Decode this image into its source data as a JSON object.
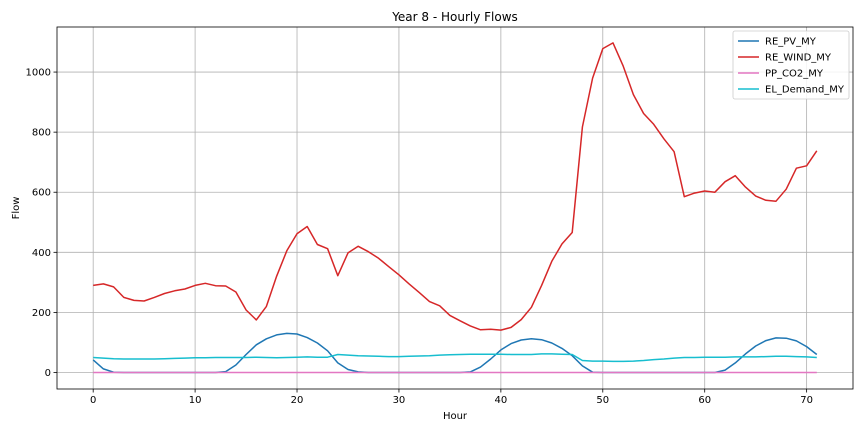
{
  "chart_data": {
    "type": "line",
    "title": "Year 8 - Hourly Flows",
    "xlabel": "Hour",
    "ylabel": "Flow",
    "xlim": [
      -3.55,
      74.55
    ],
    "ylim": [
      -55,
      1150
    ],
    "xticks": [
      0,
      10,
      20,
      30,
      40,
      50,
      60,
      70
    ],
    "yticks": [
      0,
      200,
      400,
      600,
      800,
      1000
    ],
    "grid": true,
    "legend_position": "top-right",
    "x": [
      0,
      1,
      2,
      3,
      4,
      5,
      6,
      7,
      8,
      9,
      10,
      11,
      12,
      13,
      14,
      15,
      16,
      17,
      18,
      19,
      20,
      21,
      22,
      23,
      24,
      25,
      26,
      27,
      28,
      29,
      30,
      31,
      32,
      33,
      34,
      35,
      36,
      37,
      38,
      39,
      40,
      41,
      42,
      43,
      44,
      45,
      46,
      47,
      48,
      49,
      50,
      51,
      52,
      53,
      54,
      55,
      56,
      57,
      58,
      59,
      60,
      61,
      62,
      63,
      64,
      65,
      66,
      67,
      68,
      69,
      70,
      71
    ],
    "series": [
      {
        "name": "RE_PV_MY",
        "color": "#1f77b4",
        "values": [
          42,
          12,
          1,
          0,
          0,
          0,
          0,
          0,
          0,
          0,
          0,
          0,
          0,
          3,
          25,
          60,
          92,
          112,
          125,
          130,
          128,
          116,
          98,
          72,
          32,
          10,
          2,
          0,
          0,
          0,
          0,
          0,
          0,
          0,
          0,
          0,
          0,
          2,
          18,
          45,
          75,
          96,
          108,
          112,
          109,
          98,
          80,
          56,
          22,
          1,
          0,
          0,
          0,
          0,
          0,
          0,
          0,
          0,
          0,
          0,
          0,
          0,
          8,
          32,
          62,
          88,
          106,
          115,
          114,
          105,
          86,
          60
        ]
      },
      {
        "name": "RE_WIND_MY",
        "color": "#d62728",
        "values": [
          290,
          295,
          285,
          250,
          240,
          238,
          250,
          263,
          272,
          278,
          290,
          297,
          289,
          288,
          268,
          208,
          175,
          220,
          320,
          405,
          462,
          486,
          426,
          412,
          322,
          398,
          420,
          402,
          380,
          352,
          325,
          295,
          266,
          236,
          222,
          190,
          172,
          155,
          142,
          144,
          141,
          150,
          176,
          217,
          290,
          370,
          428,
          466,
          817,
          980,
          1078,
          1097,
          1020,
          925,
          862,
          826,
          778,
          735,
          585,
          597,
          604,
          600,
          635,
          655,
          617,
          587,
          573,
          570,
          610,
          680,
          688,
          738
        ]
      },
      {
        "name": "PP_CO2_MY",
        "color": "#e377c2",
        "values": [
          0,
          0,
          0,
          0,
          0,
          0,
          0,
          0,
          0,
          0,
          0,
          0,
          0,
          0,
          0,
          0,
          0,
          0,
          0,
          0,
          0,
          0,
          0,
          0,
          0,
          0,
          0,
          0,
          0,
          0,
          0,
          0,
          0,
          0,
          0,
          0,
          0,
          0,
          0,
          0,
          0,
          0,
          0,
          0,
          0,
          0,
          0,
          0,
          0,
          0,
          0,
          0,
          0,
          0,
          0,
          0,
          0,
          0,
          0,
          0,
          0,
          0,
          0,
          0,
          0,
          0,
          0,
          0,
          0,
          0,
          0,
          0
        ]
      },
      {
        "name": "EL_Demand_MY",
        "color": "#17becf",
        "values": [
          50,
          48,
          46,
          45,
          45,
          45,
          45,
          46,
          47,
          48,
          49,
          49,
          50,
          50,
          50,
          50,
          51,
          50,
          49,
          50,
          51,
          52,
          51,
          51,
          60,
          58,
          56,
          55,
          54,
          53,
          53,
          54,
          55,
          56,
          58,
          59,
          60,
          61,
          61,
          61,
          61,
          60,
          60,
          60,
          62,
          62,
          61,
          60,
          40,
          38,
          38,
          37,
          37,
          38,
          40,
          43,
          45,
          48,
          50,
          50,
          51,
          51,
          51,
          52,
          52,
          52,
          53,
          54,
          54,
          53,
          52,
          50
        ]
      }
    ]
  }
}
